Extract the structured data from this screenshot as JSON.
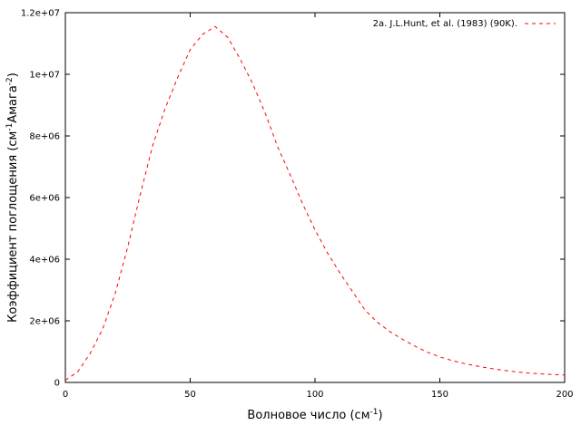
{
  "chart_data": {
    "type": "line",
    "xlabel_main": "Волновое число (см",
    "xlabel_sup": "-1",
    "xlabel_end": ")",
    "ylabel_main": "Коэффициент поглощения (см",
    "ylabel_sup1": "-1",
    "ylabel_mid": "Амага",
    "ylabel_sup2": "-2",
    "ylabel_end": ")",
    "xlim": [
      0,
      200
    ],
    "ylim": [
      0,
      12000000
    ],
    "x_ticks": [
      0,
      50,
      100,
      150,
      200
    ],
    "x_tick_labels": [
      "0",
      "50",
      "100",
      "150",
      "200"
    ],
    "y_ticks": [
      0,
      2000000,
      4000000,
      6000000,
      8000000,
      10000000,
      12000000
    ],
    "y_tick_labels": [
      "0",
      "2e+06",
      "4e+06",
      "6e+06",
      "8e+06",
      "1e+07",
      "1.2e+07"
    ],
    "grid": false,
    "legend_position": "top-right",
    "series": [
      {
        "name": "2a. J.L.Hunt, et al. (1983) (90K).",
        "color": "#ff0000",
        "line_style": "dashed",
        "x": [
          0,
          5,
          10,
          15,
          20,
          25,
          30,
          35,
          40,
          45,
          50,
          55,
          60,
          65,
          70,
          75,
          80,
          85,
          90,
          95,
          100,
          105,
          110,
          115,
          120,
          125,
          130,
          135,
          140,
          145,
          150,
          155,
          160,
          165,
          170,
          175,
          180,
          185,
          190,
          195,
          200
        ],
        "y": [
          70000,
          350000,
          950000,
          1750000,
          2900000,
          4400000,
          6100000,
          7700000,
          8900000,
          9900000,
          10800000,
          11300000,
          11550000,
          11200000,
          10500000,
          9700000,
          8750000,
          7650000,
          6750000,
          5800000,
          4950000,
          4200000,
          3550000,
          2950000,
          2350000,
          1950000,
          1650000,
          1400000,
          1180000,
          980000,
          830000,
          710000,
          610000,
          530000,
          460000,
          400000,
          350000,
          310000,
          280000,
          260000,
          240000
        ]
      }
    ]
  }
}
